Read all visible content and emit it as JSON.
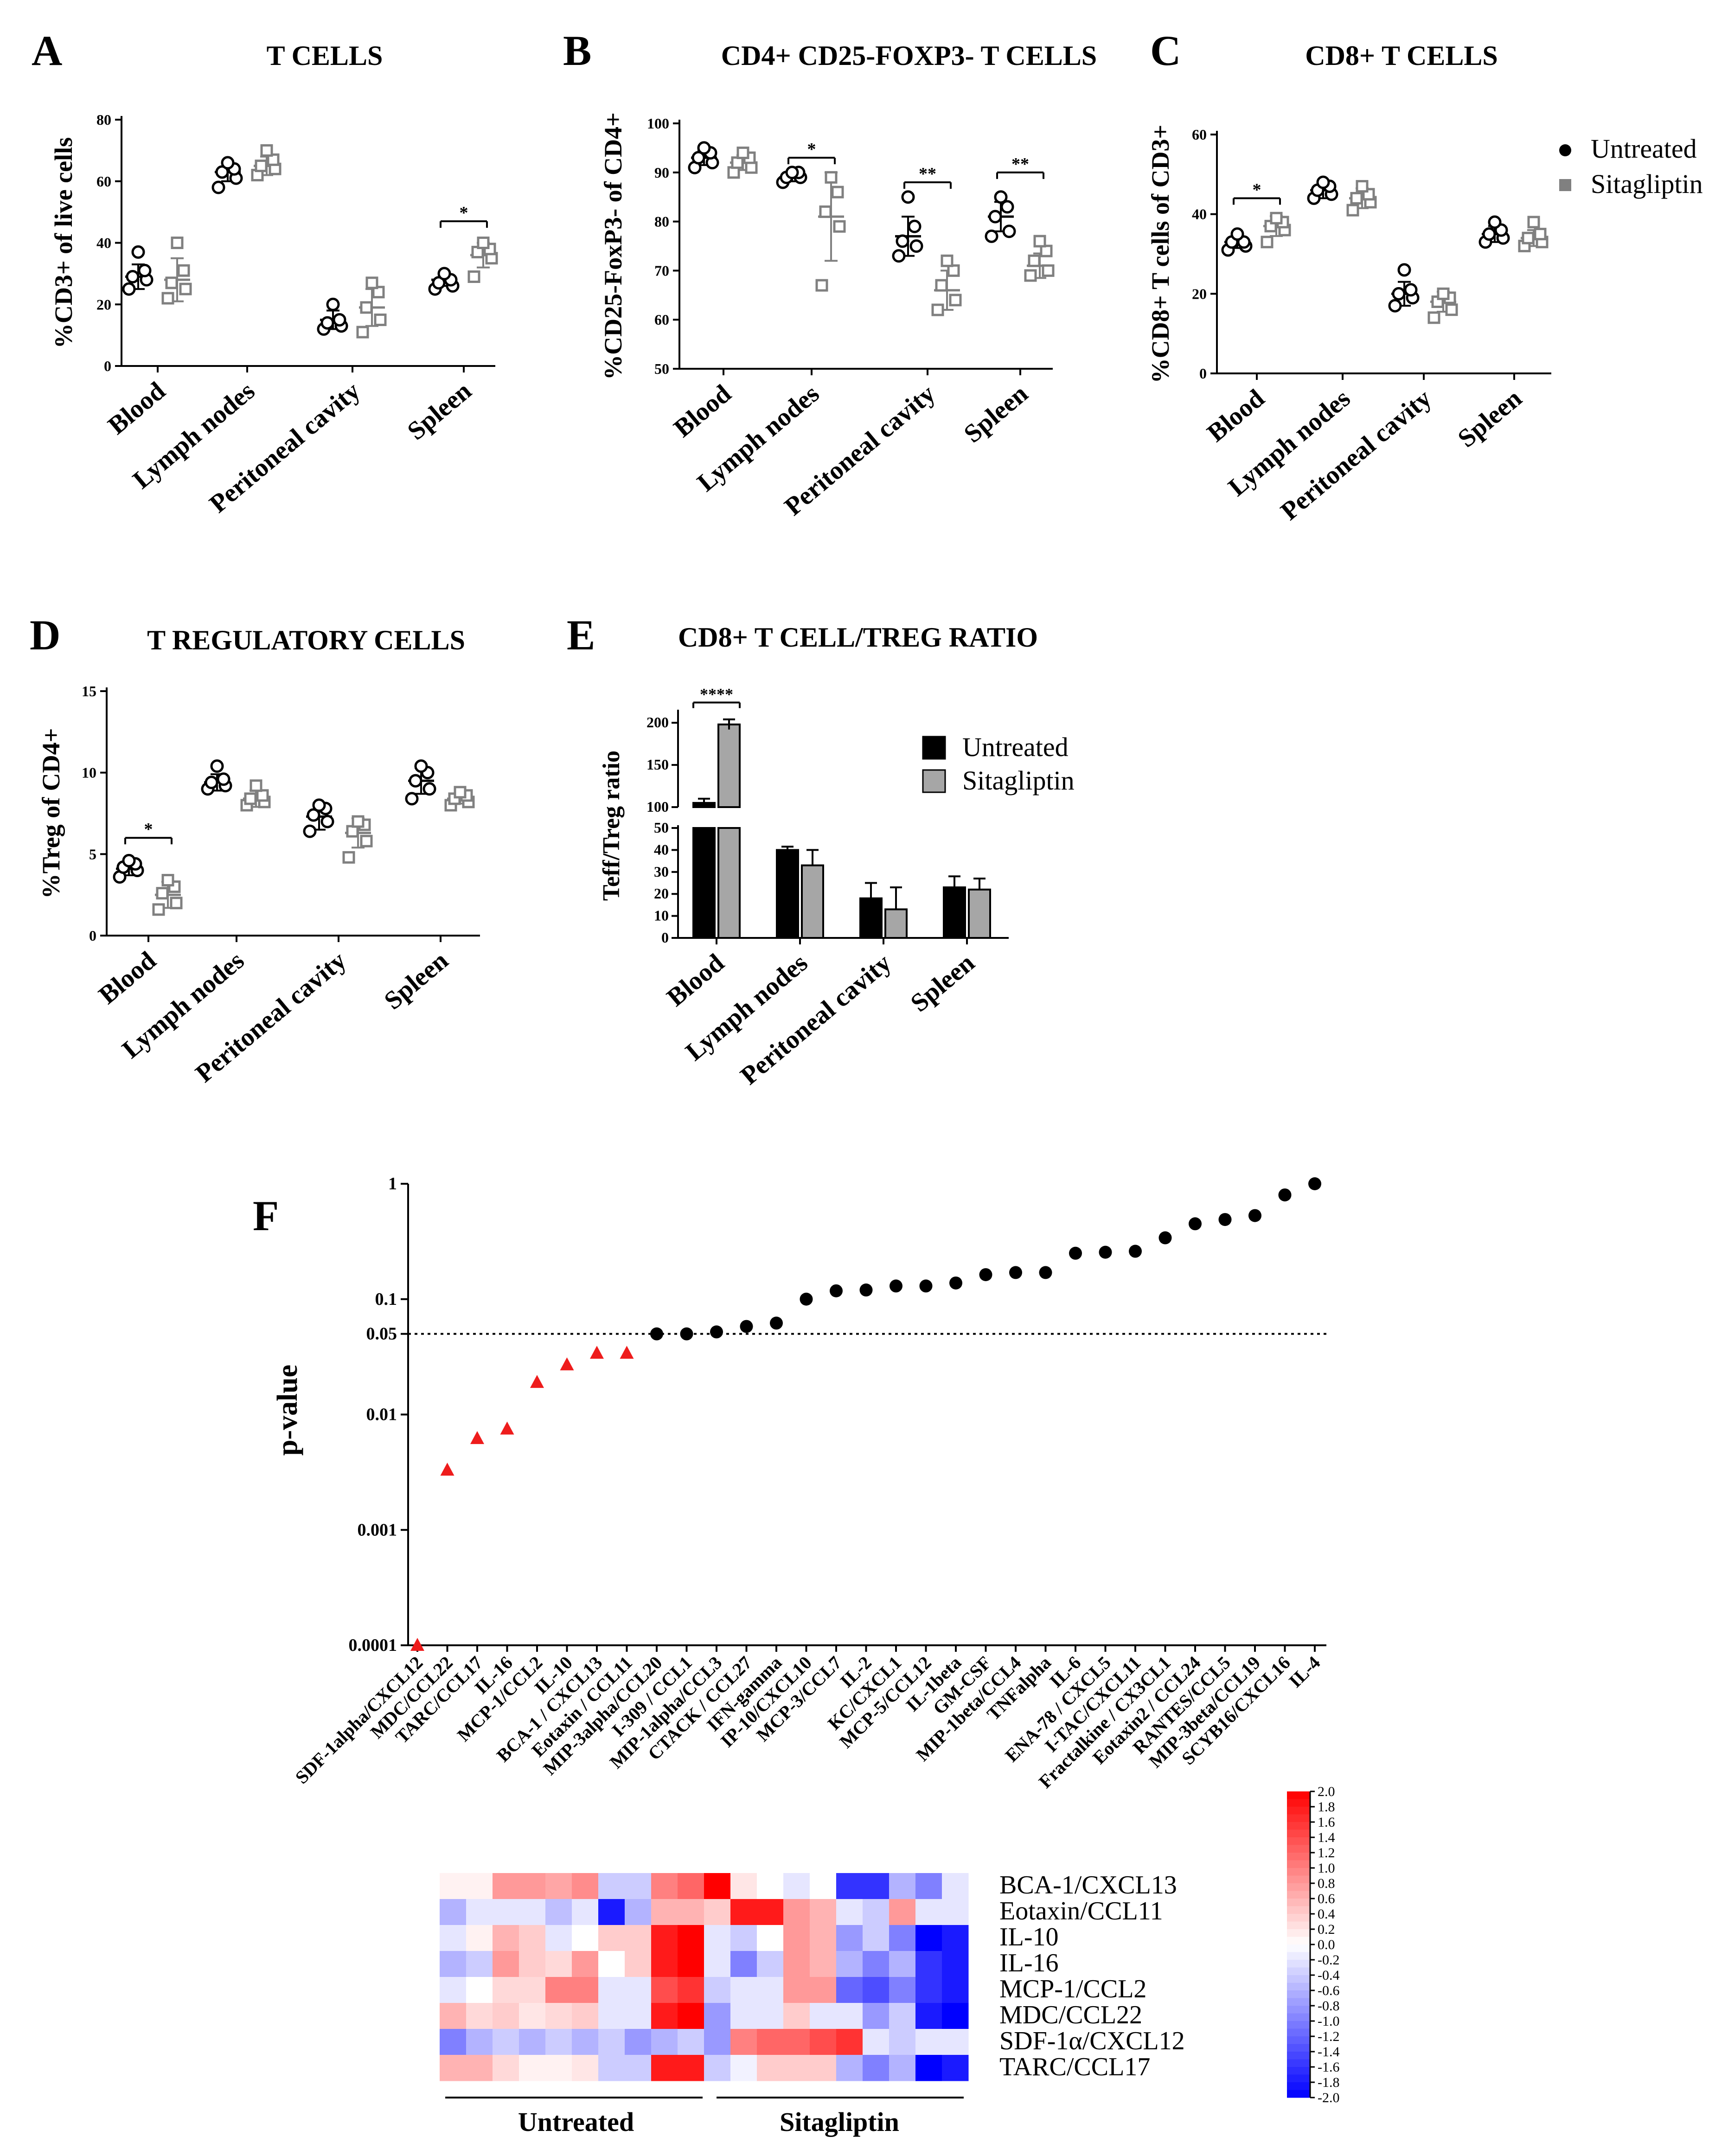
{
  "panels": {
    "A": {
      "letter": "A",
      "title": "T CELLS",
      "ylabel": "%CD3+ of live cells",
      "ylim": [
        0,
        80
      ],
      "yticks": [
        0,
        20,
        40,
        60,
        80
      ],
      "categories": [
        "Blood",
        "Lymph nodes",
        "Peritoneal cavity",
        "Spleen"
      ],
      "untreated": {
        "points": [
          [
            25,
            28,
            29,
            31,
            37
          ],
          [
            58,
            61,
            63,
            64,
            66
          ],
          [
            12,
            13,
            14,
            15,
            20
          ]
        ],
        "mean": [
          29,
          63,
          15
        ],
        "sd": [
          4,
          3,
          3
        ]
      },
      "sitagliptin": {
        "points": [
          [
            22,
            25,
            27,
            31,
            40
          ],
          [
            62,
            64,
            65,
            67,
            70
          ],
          [
            11,
            15,
            19,
            24,
            27
          ]
        ],
        "mean": [
          28,
          65,
          19
        ],
        "sd": [
          7,
          3,
          6
        ]
      },
      "spleen": {
        "untreated": [
          25,
          26,
          27,
          28,
          30
        ],
        "untreated_mean": 28,
        "untreated_sd": 2,
        "sitagliptin": [
          29,
          35,
          37,
          38,
          40
        ],
        "sitagliptin_mean": 36,
        "sitagliptin_sd": 4
      },
      "sig": [
        {
          "cat": 3,
          "label": "*",
          "y": 47
        }
      ]
    },
    "B": {
      "letter": "B",
      "title": "CD4+ CD25-FOXP3- T CELLS",
      "ylabel": "%CD25-FoxP3- of CD4+",
      "ylim": [
        50,
        100
      ],
      "yticks": [
        50,
        60,
        70,
        80,
        90,
        100
      ],
      "categories": [
        "Blood",
        "Lymph nodes",
        "Peritoneal cavity",
        "Spleen"
      ],
      "untreated": {
        "points": [
          [
            91,
            92,
            93,
            94,
            95
          ],
          [
            88,
            89,
            89,
            90,
            90
          ],
          [
            73,
            75,
            76,
            79,
            85
          ],
          [
            77,
            78,
            81,
            83,
            85
          ]
        ],
        "mean": [
          93,
          89,
          77,
          81
        ],
        "sd": [
          1.5,
          0.8,
          4,
          3
        ]
      },
      "sitagliptin": {
        "points": [
          [
            90,
            91,
            92,
            93,
            94
          ],
          [
            67,
            79,
            82,
            86,
            89
          ],
          [
            62,
            64,
            67,
            70,
            72
          ],
          [
            69,
            70,
            72,
            74,
            76
          ]
        ],
        "mean": [
          92,
          81,
          66,
          71
        ],
        "sd": [
          1.5,
          9,
          4,
          2.5
        ]
      },
      "sig": [
        {
          "cat": 1,
          "label": "*",
          "y": 93
        },
        {
          "cat": 2,
          "label": "**",
          "y": 88
        },
        {
          "cat": 3,
          "label": "**",
          "y": 90
        }
      ]
    },
    "C": {
      "letter": "C",
      "title": "CD8+ T CELLS",
      "ylabel": "%CD8+ T cells of CD3+",
      "ylim": [
        0,
        60
      ],
      "yticks": [
        0,
        20,
        40,
        60
      ],
      "categories": [
        "Blood",
        "Lymph nodes",
        "Peritoneal cavity",
        "Spleen"
      ],
      "untreated": {
        "points": [
          [
            31,
            32,
            33,
            33,
            35
          ],
          [
            44,
            45,
            46,
            47,
            48
          ],
          [
            17,
            19,
            20,
            21,
            26
          ],
          [
            33,
            34,
            35,
            36,
            38
          ]
        ],
        "mean": [
          33,
          46,
          20,
          35
        ],
        "sd": [
          1.5,
          2,
          3,
          2
        ]
      },
      "sitagliptin": {
        "points": [
          [
            33,
            36,
            37,
            38,
            39
          ],
          [
            41,
            43,
            44,
            45,
            47
          ],
          [
            14,
            16,
            18,
            19,
            20
          ],
          [
            32,
            33,
            34,
            35,
            38
          ]
        ],
        "mean": [
          37,
          44,
          18,
          34
        ],
        "sd": [
          2.5,
          2.5,
          2.5,
          2
        ]
      },
      "sig": [
        {
          "cat": 0,
          "label": "*",
          "y": 44
        }
      ]
    },
    "D": {
      "letter": "D",
      "title": "T REGULATORY CELLS",
      "ylabel": "%Treg of CD4+",
      "ylim": [
        0,
        15
      ],
      "yticks": [
        0,
        5,
        10,
        15
      ],
      "categories": [
        "Blood",
        "Lymph nodes",
        "Peritoneal cavity",
        "Spleen"
      ],
      "untreated": {
        "points": [
          [
            3.6,
            4.0,
            4.2,
            4.4,
            4.6
          ],
          [
            9.0,
            9.2,
            9.4,
            9.6,
            10.4
          ],
          [
            6.4,
            7.0,
            7.4,
            7.8,
            8.0
          ],
          [
            8.4,
            9.0,
            9.5,
            10.0,
            10.4
          ]
        ],
        "mean": [
          4.1,
          9.4,
          7.3,
          9.5
        ],
        "sd": [
          0.4,
          0.5,
          0.8,
          0.8
        ]
      },
      "sitagliptin": {
        "points": [
          [
            1.6,
            2.0,
            2.6,
            3.0,
            3.4
          ],
          [
            8.0,
            8.2,
            8.4,
            8.6,
            9.2
          ],
          [
            4.8,
            5.8,
            6.4,
            6.8,
            7.0
          ],
          [
            8.0,
            8.2,
            8.4,
            8.6,
            8.8
          ]
        ],
        "mean": [
          2.5,
          8.4,
          6.3,
          8.4
        ],
        "sd": [
          0.8,
          0.5,
          0.9,
          0.3
        ]
      },
      "sig": [
        {
          "cat": 0,
          "label": "*",
          "y": 6
        }
      ]
    },
    "E": {
      "letter": "E",
      "title": "CD8+ T CELL/TREG RATIO",
      "ylabel": "Teff/Treg ratio",
      "yticks_low": [
        0,
        10,
        20,
        30,
        40,
        50
      ],
      "yticks_high": [
        100,
        150,
        200
      ],
      "categories": [
        "Blood",
        "Lymph nodes",
        "Peritoneal cavity",
        "Spleen"
      ],
      "untreated": {
        "values": [
          105,
          40,
          18,
          23
        ],
        "err": [
          5,
          1.5,
          7,
          5
        ]
      },
      "sitagliptin": {
        "values": [
          198,
          33,
          13,
          22
        ],
        "err": [
          6,
          7,
          10,
          5
        ]
      },
      "sig": [
        {
          "cat": 0,
          "label": "****"
        }
      ]
    }
  },
  "legend_top": {
    "untreated": "Untreated",
    "sitagliptin": "Sitagliptin"
  },
  "legend_E": {
    "untreated": "Untreated",
    "sitagliptin": "Sitagliptin"
  },
  "chart_data": {
    "type": "scatter",
    "letter": "F",
    "title": "",
    "xlabel": "",
    "ylabel": "p-value",
    "yscale": "log",
    "ylim": [
      0.0001,
      1
    ],
    "yticks": [
      "0.0001",
      "0.001",
      "0.01",
      "0.05",
      "0.1",
      "1"
    ],
    "threshold": 0.05,
    "categories": [
      "SDF-1alpha/CXCL12",
      "MDC/CCL22",
      "TARC/CCL17",
      "IL-16",
      "MCP-1/CCL2",
      "IL-10",
      "BCA-1 / CXCL13",
      "Eotaxin / CCL11",
      "MIP-3alpha/CCL20",
      "I-309 / CCL1",
      "MIP-1alpha/CCL3",
      "CTACK / CCL27",
      "IFN-gamma",
      "IP-10/CXCL10",
      "MCP-3/CCL7",
      "IL-2",
      "KC/CXCL1",
      "MCP-5/CCL12",
      "IL-1beta",
      "GM-CSF",
      "MIP-1beta/CCL4",
      "TNFalpha",
      "IL-6",
      "ENA-78 / CXCL5",
      "I-TAC/CXCL11",
      "Fractalkine / CX3CL1",
      "Eotaxin2 / CCL24",
      "RANTES/CCL5",
      "MIP-3beta/CCL19",
      "SCYB16/CXCL16",
      "IL-4"
    ],
    "values": [
      0.0001,
      0.0033,
      0.0062,
      0.0075,
      0.019,
      0.027,
      0.034,
      0.034,
      0.05,
      0.05,
      0.052,
      0.058,
      0.062,
      0.1,
      0.118,
      0.12,
      0.13,
      0.13,
      0.138,
      0.163,
      0.17,
      0.17,
      0.25,
      0.255,
      0.26,
      0.34,
      0.45,
      0.49,
      0.53,
      0.8,
      1.0
    ],
    "significant_count": 8
  },
  "heatmap": {
    "rows": [
      "BCA-1/CXCL13",
      "Eotaxin/CCL11",
      "IL-10",
      "IL-16",
      "MCP-1/CCL2",
      "MDC/CCL22",
      "SDF-1α/CXCL12",
      "TARC/CCL17"
    ],
    "groups": [
      "Untreated",
      "Sitagliptin"
    ],
    "values": [
      [
        0.1,
        0.1,
        0.8,
        0.8,
        0.7,
        0.9,
        -0.4,
        -0.4,
        1.0,
        1.2,
        2.0,
        0.2,
        0.0,
        -0.2,
        0.0,
        -1.6,
        -1.6,
        -0.6,
        -1.0,
        -0.2
      ],
      [
        -0.6,
        -0.2,
        -0.2,
        -0.2,
        -0.5,
        -0.2,
        -1.8,
        -0.6,
        0.6,
        0.6,
        0.4,
        1.8,
        1.8,
        0.8,
        0.6,
        -0.2,
        -0.4,
        0.8,
        -0.2,
        -0.2
      ],
      [
        -0.2,
        0.1,
        0.6,
        0.4,
        -0.2,
        0.0,
        0.4,
        0.4,
        1.8,
        2.0,
        -0.2,
        -0.4,
        0.0,
        0.8,
        0.6,
        -0.8,
        -0.4,
        -1.0,
        -2.0,
        -1.8
      ],
      [
        -0.6,
        -0.4,
        0.8,
        0.4,
        0.3,
        0.8,
        0.0,
        0.4,
        1.8,
        2.0,
        -0.2,
        -1.0,
        -0.4,
        0.8,
        0.6,
        -0.6,
        -1.0,
        -0.6,
        -1.6,
        -1.8
      ],
      [
        -0.2,
        0.0,
        0.3,
        0.3,
        1.0,
        1.0,
        -0.2,
        -0.2,
        1.4,
        1.6,
        -0.4,
        -0.2,
        -0.2,
        0.8,
        0.8,
        -1.2,
        -1.4,
        -1.0,
        -1.6,
        -1.8
      ],
      [
        0.6,
        0.3,
        0.4,
        0.2,
        0.3,
        0.4,
        -0.2,
        -0.2,
        1.8,
        2.0,
        -0.8,
        -0.2,
        -0.2,
        0.4,
        -0.2,
        -0.2,
        -0.8,
        -0.4,
        -1.8,
        -2.0
      ],
      [
        -1.0,
        -0.6,
        -0.4,
        -0.6,
        -0.4,
        -0.6,
        -0.4,
        -0.8,
        -0.6,
        -0.4,
        -0.8,
        1.0,
        1.2,
        1.2,
        1.4,
        1.6,
        -0.2,
        -0.4,
        -0.2,
        -0.2
      ],
      [
        0.6,
        0.6,
        0.3,
        0.1,
        0.1,
        0.2,
        -0.4,
        -0.4,
        1.8,
        1.8,
        -0.4,
        -0.1,
        0.4,
        0.4,
        0.4,
        -0.6,
        -1.0,
        -0.6,
        -2.0,
        -1.8
      ]
    ],
    "scale_ticks": [
      "2.0",
      "1.8",
      "1.6",
      "1.4",
      "1.2",
      "1.0",
      "0.8",
      "0.6",
      "0.4",
      "0.2",
      "0.0",
      "-0.2",
      "-0.4",
      "-0.6",
      "-0.8",
      "-1.0",
      "-1.2",
      "-1.4",
      "-1.6",
      "-1.8",
      "-2.0"
    ]
  },
  "colors": {
    "untreated": "#000000",
    "sitagliptin": "#808080",
    "significant": "#ee1c1c",
    "bar_untreated": "#000000",
    "bar_sitagliptin": "#a6a6a6"
  }
}
